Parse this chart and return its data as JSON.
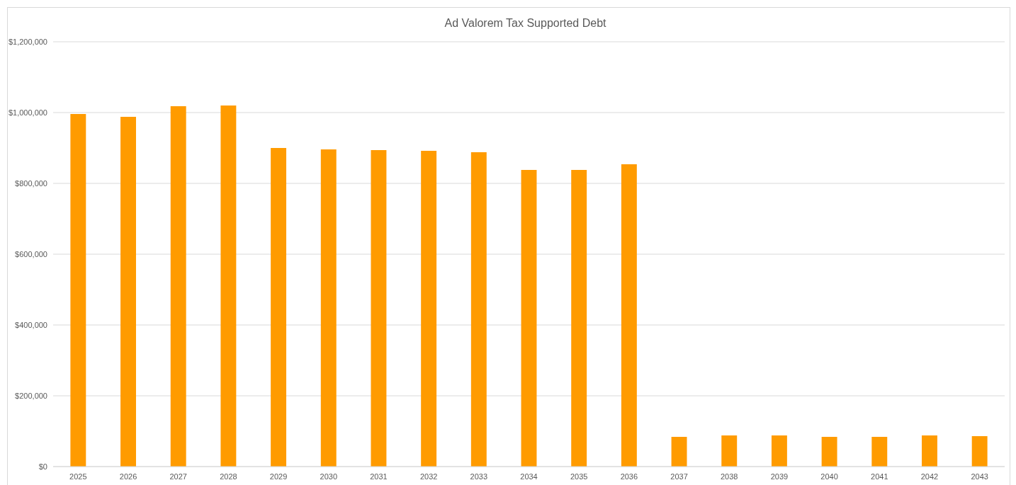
{
  "chart_data": {
    "type": "bar",
    "title": "Ad Valorem Tax Supported Debt",
    "categories": [
      "2025",
      "2026",
      "2027",
      "2028",
      "2029",
      "2030",
      "2031",
      "2032",
      "2033",
      "2034",
      "2035",
      "2036",
      "2037",
      "2038",
      "2039",
      "2040",
      "2041",
      "2042",
      "2043"
    ],
    "values": [
      996000,
      988000,
      1018000,
      1020000,
      900000,
      896000,
      894000,
      892000,
      888000,
      838000,
      838000,
      854000,
      84000,
      88000,
      88000,
      84000,
      84000,
      88000,
      86000
    ],
    "color": "#ff9b00",
    "ylim": [
      0,
      1200000
    ],
    "yticks": [
      {
        "value": 0,
        "label": "$0"
      },
      {
        "value": 200000,
        "label": "$200,000"
      },
      {
        "value": 400000,
        "label": "$400,000"
      },
      {
        "value": 600000,
        "label": "$600,000"
      },
      {
        "value": 800000,
        "label": "$800,000"
      },
      {
        "value": 1000000,
        "label": "$1,000,000"
      },
      {
        "value": 1200000,
        "label": "$1,200,000"
      }
    ],
    "grid": "y"
  }
}
